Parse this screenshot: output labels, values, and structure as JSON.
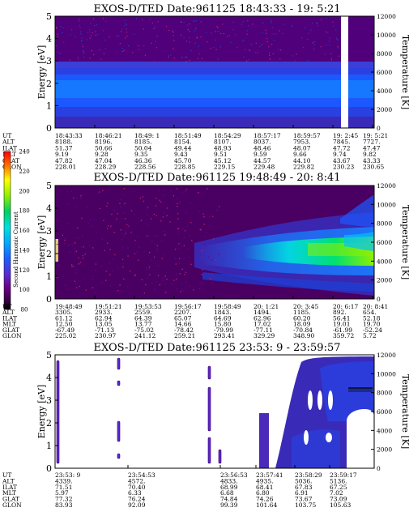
{
  "chart_data": [
    {
      "type": "heatmap",
      "title": "EXOS-D/TED   Date:961125  18:43:33 - 19: 5:21",
      "ylabel": "Energy [eV]",
      "y2label": "Temperature [K]",
      "ylim": [
        0,
        5
      ],
      "y2lim": [
        0,
        12000
      ],
      "yticks": [
        "0",
        "1",
        "2",
        "3",
        "4",
        "5"
      ],
      "y2ticks": [
        "0",
        "2000",
        "4000",
        "6000",
        "8000",
        "10000",
        "12000"
      ],
      "ephemeris_labels": [
        "UT",
        "ALT",
        "ILAT",
        "MLT",
        "GLAT",
        "GLON"
      ],
      "ephemeris": [
        [
          "18:43:33",
          "8188.",
          "51.37",
          "9.19",
          "47.82",
          "228.01"
        ],
        [
          "18:46:21",
          "8196.",
          "50.66",
          "9.28",
          "47.04",
          "228.29"
        ],
        [
          "18:49: 1",
          "8185.",
          "50.04",
          "9.35",
          "46.36",
          "228.56"
        ],
        [
          "18:51:49",
          "8154.",
          "49.44",
          "9.43",
          "45.70",
          "228.85"
        ],
        [
          "18:54:29",
          "8107.",
          "48.93",
          "9.51",
          "45.12",
          "229.15"
        ],
        [
          "18:57:17",
          "8037.",
          "48.46",
          "9.59",
          "44.57",
          "229.48"
        ],
        [
          "18:59:57",
          "7953.",
          "48.07",
          "9.66",
          "44.10",
          "229.82"
        ],
        [
          "19: 2:45",
          "7845.",
          "47.72",
          "9.74",
          "43.67",
          "230.23"
        ],
        [
          "19: 5:21",
          "7727.",
          "47.47",
          "9.82",
          "43.33",
          "230.65"
        ]
      ],
      "data_gap": [
        "19: 3:40",
        "19: 4:10"
      ]
    },
    {
      "type": "heatmap",
      "title": "EXOS-D/TED   Date:961125  19:48:49 - 20: 8:41",
      "ylabel": "Energy [eV]",
      "y2label": "Temperature [K]",
      "colorbar_label": "Second Harmonic Current",
      "colorbar_ticks": [
        "80",
        "100",
        "120",
        "140",
        "160",
        "180",
        "200",
        "220",
        "240"
      ],
      "ylim": [
        0,
        5
      ],
      "y2lim": [
        0,
        12000
      ],
      "yticks": [
        "0",
        "1",
        "2",
        "3",
        "4",
        "5"
      ],
      "y2ticks": [
        "0",
        "2000",
        "4000",
        "6000",
        "8000",
        "10000",
        "12000"
      ],
      "ephemeris_labels": [
        "UT",
        "ALT",
        "ILAT",
        "MLT",
        "GLAT",
        "GLON"
      ],
      "ephemeris": [
        [
          "19:48:49",
          "3305.",
          "61.12",
          "12.50",
          "-67.49",
          "225.02"
        ],
        [
          "19:51:21",
          "2933.",
          "62.94",
          "13.05",
          "-71.13",
          "230.97"
        ],
        [
          "19:53:53",
          "2559.",
          "64.39",
          "13.77",
          "-75.02",
          "241.12"
        ],
        [
          "19:56:17",
          "2207.",
          "65.07",
          "14.66",
          "-78.42",
          "259.21"
        ],
        [
          "19:58:49",
          "1843.",
          "64.69",
          "15.80",
          "-79.99",
          "293.41"
        ],
        [
          "20: 1:21",
          "1494.",
          "62.96",
          "17.02",
          "-77.11",
          "329.29"
        ],
        [
          "20: 3:45",
          "1185.",
          "60.20",
          "18.09",
          "-70.84",
          "348.90"
        ],
        [
          "20: 6:17",
          "892.",
          "56.41",
          "19.01",
          "-61.99",
          "359.72"
        ],
        [
          "20: 8:41",
          "654.",
          "52.18",
          "19.70",
          "-52.24",
          "5.72"
        ]
      ]
    },
    {
      "type": "heatmap",
      "title": "EXOS-D/TED   Date:961125  23:53: 9 - 23:59:57",
      "ylabel": "Energy [eV]",
      "y2label": "Temperature [K]",
      "ylim": [
        0,
        5
      ],
      "y2lim": [
        0,
        12000
      ],
      "yticks": [
        "0",
        "1",
        "2",
        "3",
        "4",
        "5"
      ],
      "y2ticks": [
        "0",
        "2000",
        "4000",
        "6000",
        "8000",
        "10000",
        "12000"
      ],
      "ephemeris_labels": [
        "UT",
        "ALT",
        "ILAT",
        "MLT",
        "GLAT",
        "GLON"
      ],
      "ephemeris": [
        [
          "23:53: 9",
          "4339.",
          "71.51",
          "5.97",
          "77.32",
          "83.93"
        ],
        [
          "23:54:53",
          "4572.",
          "70.40",
          "6.33",
          "76.24",
          "92.09"
        ],
        [
          "23:56:53",
          "4833.",
          "68.99",
          "6.68",
          "74.84",
          "99.39"
        ],
        [
          "23:57:41",
          "4935.",
          "68.41",
          "6.80",
          "74.26",
          "101.64"
        ],
        [
          "23:58:29",
          "5036.",
          "67.83",
          "6.91",
          "73.67",
          "103.75"
        ],
        [
          "23:59:17",
          "5136.",
          "67.25",
          "7.02",
          "73.09",
          "105.63"
        ]
      ]
    }
  ]
}
